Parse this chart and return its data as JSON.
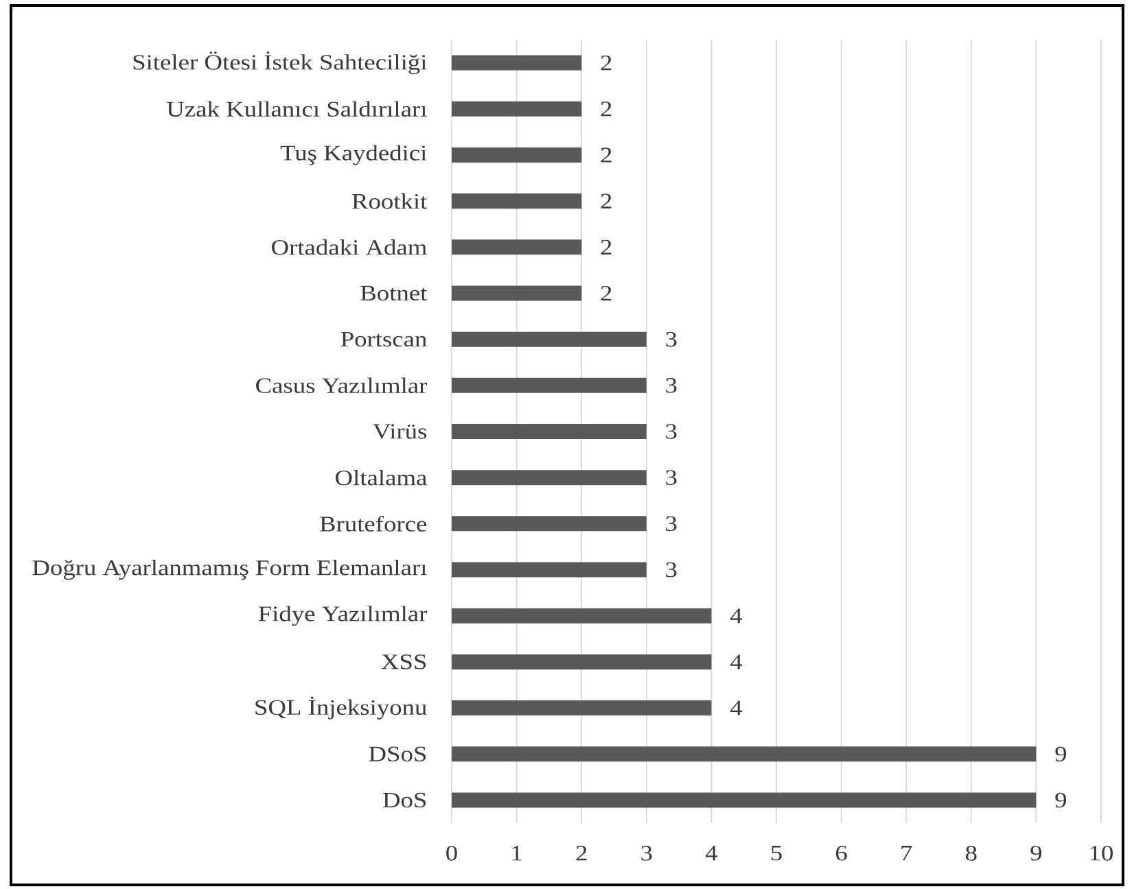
{
  "chart_data": {
    "type": "bar",
    "orientation": "horizontal",
    "categories": [
      "Siteler Ötesi İstek Sahteciliği",
      "Uzak Kullanıcı Saldırıları",
      "Tuş Kaydedici",
      "Rootkit",
      "Ortadaki Adam",
      "Botnet",
      "Portscan",
      "Casus Yazılımlar",
      "Virüs",
      "Oltalama",
      "Bruteforce",
      "Doğru Ayarlanmamış Form Elemanları",
      "Fidye Yazılımlar",
      "XSS",
      "SQL İnjeksiyonu",
      "DSoS",
      "DoS"
    ],
    "values": [
      2,
      2,
      2,
      2,
      2,
      2,
      3,
      3,
      3,
      3,
      3,
      3,
      4,
      4,
      4,
      9,
      9
    ],
    "color": "#595959",
    "xlim": [
      0,
      10
    ],
    "xticks": [
      0,
      1,
      2,
      3,
      4,
      5,
      6,
      7,
      8,
      9,
      10
    ],
    "grid": "x",
    "data_labels": true
  }
}
